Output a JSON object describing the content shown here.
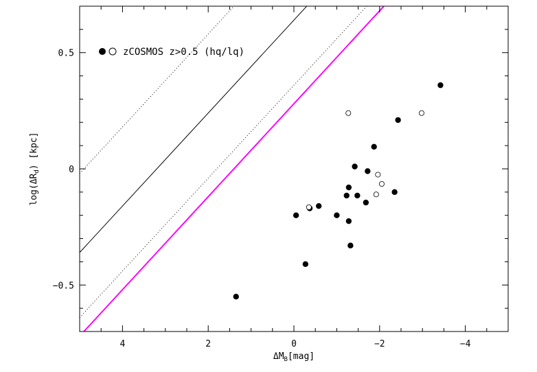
{
  "chart_data": {
    "type": "scatter",
    "title": "",
    "xlabel": "ΔM",
    "xlabel_sub": "B",
    "xlabel_unit": "[mag]",
    "ylabel_prefix": "log(ΔR",
    "ylabel_sub": "d",
    "ylabel_suffix": ") [kpc]",
    "xlim": [
      5,
      -5
    ],
    "ylim": [
      -0.7,
      0.7
    ],
    "x_inverted": true,
    "xticks": [
      4,
      2,
      0,
      -2,
      -4
    ],
    "xtick_labels": [
      "4",
      "2",
      "0",
      "−2",
      "−4"
    ],
    "yticks": [
      0.5,
      0,
      -0.5
    ],
    "ytick_labels": [
      "0.5",
      "0",
      "−0.5"
    ],
    "grid": false,
    "legend_position": "top-left",
    "legend_label": "zCOSMOS z>0.5 (hq/lq)",
    "series": [
      {
        "name": "zCOSMOS z>0.5 hq",
        "marker": "filled-circle",
        "color": "#000000",
        "points": [
          [
            1.35,
            -0.55
          ],
          [
            -0.05,
            -0.2
          ],
          [
            -0.37,
            -0.17
          ],
          [
            -0.58,
            -0.16
          ],
          [
            -0.27,
            -0.41
          ],
          [
            -1.0,
            -0.2
          ],
          [
            -1.23,
            -0.115
          ],
          [
            -1.28,
            -0.08
          ],
          [
            -1.28,
            -0.225
          ],
          [
            -1.32,
            -0.33
          ],
          [
            -1.42,
            0.01
          ],
          [
            -1.48,
            -0.115
          ],
          [
            -1.68,
            -0.145
          ],
          [
            -1.72,
            -0.01
          ],
          [
            -1.87,
            0.095
          ],
          [
            -2.35,
            -0.1
          ],
          [
            -2.43,
            0.21
          ],
          [
            -3.42,
            0.36
          ]
        ]
      },
      {
        "name": "zCOSMOS z>0.5 lq",
        "marker": "open-circle",
        "color": "#000000",
        "points": [
          [
            -0.35,
            -0.165
          ],
          [
            -1.27,
            0.24
          ],
          [
            -1.92,
            -0.11
          ],
          [
            -1.96,
            -0.025
          ],
          [
            -2.05,
            -0.065
          ],
          [
            -2.98,
            0.24
          ]
        ]
      }
    ],
    "lines": [
      {
        "name": "solid",
        "style": "solid",
        "color": "#000000",
        "slope": -0.2,
        "intercept": 0.64
      },
      {
        "name": "dotted-upper",
        "style": "dotted",
        "color": "#000000",
        "slope": -0.2,
        "intercept": 0.98
      },
      {
        "name": "dotted-lower",
        "style": "dotted",
        "color": "#000000",
        "slope": -0.2,
        "intercept": 0.36
      },
      {
        "name": "magenta-fit",
        "style": "solid",
        "color": "#ff00ff",
        "slope": -0.2,
        "intercept": 0.28
      }
    ]
  }
}
